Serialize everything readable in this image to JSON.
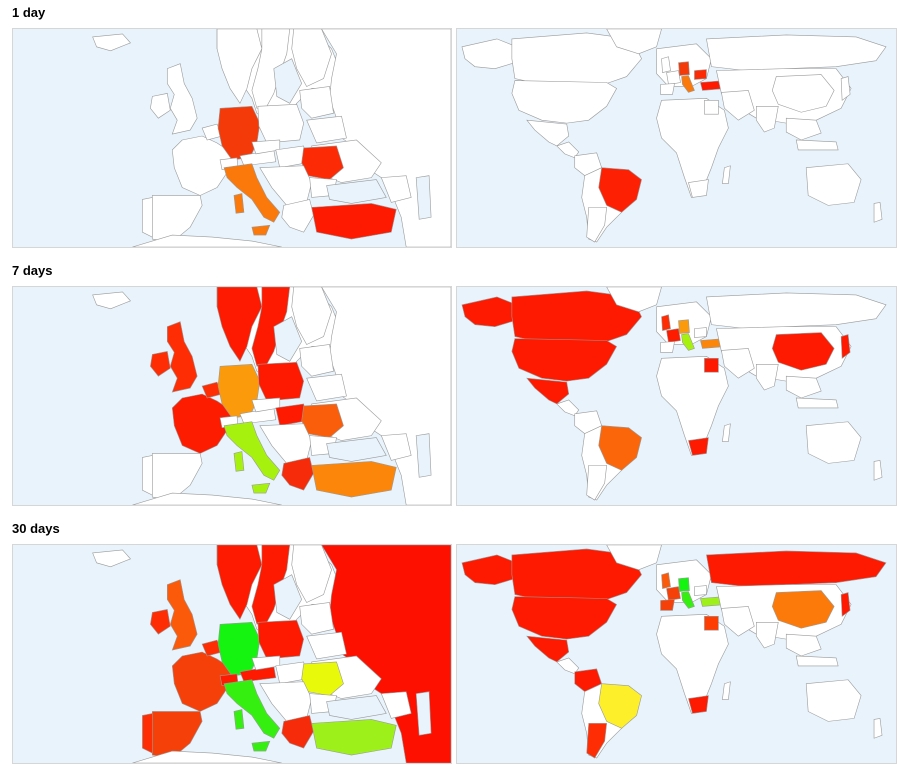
{
  "sections": [
    {
      "title": "1 day",
      "europe": {
        "germany": "#f53a0a",
        "italy": "#fb780a",
        "romania": "#fd2b05",
        "turkey": "#fe1a00"
      },
      "world": {
        "brazil": "#fd2002",
        "germany": "#f53a0a",
        "italy": "#fb780a",
        "romania": "#fd2b05",
        "turkey": "#fe1a00"
      }
    },
    {
      "title": "7 days",
      "europe": {
        "uk": "#fe2d03",
        "ireland": "#fe2d03",
        "france": "#fe1c00",
        "germany": "#fb9a0a",
        "poland": "#fe1a00",
        "sweden": "#fe1a00",
        "norway": "#fe1a00",
        "italy": "#a6f10e",
        "romania": "#fb5e0a",
        "turkey": "#fb860a",
        "greece": "#f62b0a",
        "hungary": "#fe1a00",
        "belgium": "#fe2d03"
      },
      "world": {
        "usa": "#fe1a00",
        "canada": "#fe1a00",
        "mexico": "#fe1a00",
        "alaska": "#fe1a00",
        "brazil": "#fb660a",
        "southafrica": "#fe1a00",
        "china": "#fe1a00",
        "japan": "#fe1a00",
        "egypt": "#fe1a00",
        "germany": "#fb9a0a",
        "italy": "#a6f10e",
        "turkey": "#fb860a",
        "uk": "#fe2d03",
        "france": "#fe1c00"
      }
    },
    {
      "title": "30 days",
      "europe": {
        "uk": "#fb5a0a",
        "ireland": "#fe2d03",
        "france": "#f5400a",
        "spain": "#f5400a",
        "portugal": "#fe2d03",
        "germany": "#15f310",
        "poland": "#fe1a00",
        "sweden": "#fe1a00",
        "norway": "#fe1a00",
        "russia": "#fe1000",
        "italy": "#35ef10",
        "romania": "#e8f90a",
        "turkey": "#9df01a",
        "greece": "#f62b0a",
        "austria": "#fe1a00",
        "belgium": "#fe2d03",
        "switzerland": "#fe1a00"
      },
      "world": {
        "usa": "#fe1a00",
        "canada": "#fe1a00",
        "mexico": "#fe1a00",
        "alaska": "#fe1a00",
        "brazil": "#fdf02a",
        "argentina": "#fe2d03",
        "colombia": "#fe1a00",
        "southafrica": "#fe1a00",
        "china": "#fb7a0a",
        "japan": "#fe1a00",
        "russia": "#fe1a00",
        "egypt": "#fe3d03",
        "germany": "#15f310",
        "italy": "#35ef10",
        "turkey": "#9df01a",
        "spain": "#f5400a",
        "uk": "#fb5a0a",
        "france": "#f5400a"
      }
    }
  ]
}
